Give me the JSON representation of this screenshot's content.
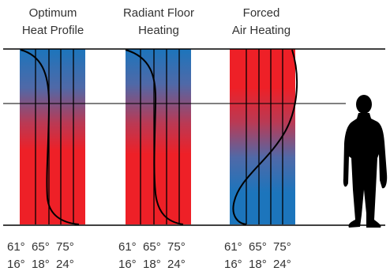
{
  "panels": [
    {
      "title_line1": "Optimum",
      "title_line2": "Heat Profile",
      "fahrenheit": "61°  65°  75°",
      "celsius": "16°  18°  24°"
    },
    {
      "title_line1": "Radiant Floor",
      "title_line2": "Heating",
      "fahrenheit": "61°  65°  75°",
      "celsius": "16°  18°  24°"
    },
    {
      "title_line1": "Forced",
      "title_line2": "Air Heating",
      "fahrenheit": "61°  65°  75°",
      "celsius": "16°  18°  24°"
    }
  ],
  "colors": {
    "warm": "#ee2027",
    "cool": "#1c75bc",
    "line": "#000000"
  }
}
